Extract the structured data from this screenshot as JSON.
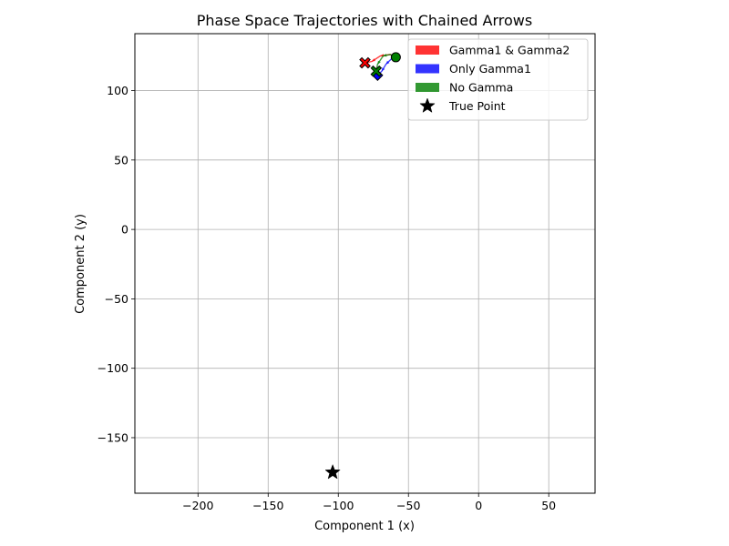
{
  "chart_data": {
    "type": "line",
    "title": "Phase Space Trajectories with Chained Arrows",
    "xlabel": "Component 1 (x)",
    "ylabel": "Component 2 (y)",
    "xlim": [
      -245,
      83
    ],
    "ylim": [
      -190,
      141
    ],
    "xticks": [
      -200,
      -150,
      -100,
      -50,
      0,
      50
    ],
    "yticks": [
      -150,
      -100,
      -50,
      0,
      50,
      100
    ],
    "xtick_labels": [
      "−200",
      "−150",
      "−100",
      "−50",
      "0",
      "50"
    ],
    "ytick_labels": [
      "−150",
      "−100",
      "−50",
      "0",
      "50",
      "100"
    ],
    "grid": true,
    "legend_position": "top-right",
    "start_point": {
      "x": -59,
      "y": 124
    },
    "series": [
      {
        "name": "Gamma1 & Gamma2",
        "color": "#ff0000",
        "path": [
          [
            -59,
            124
          ],
          [
            -63,
            126
          ],
          [
            -70,
            125
          ],
          [
            -76,
            121
          ],
          [
            -81,
            120
          ]
        ],
        "end_marker": "X"
      },
      {
        "name": "Only Gamma1",
        "color": "#0000ff",
        "path": [
          [
            -59,
            124
          ],
          [
            -62,
            123
          ],
          [
            -66,
            119
          ],
          [
            -69,
            114
          ],
          [
            -72,
            111
          ]
        ],
        "end_marker": "D"
      },
      {
        "name": "No Gamma",
        "color": "#008000",
        "path": [
          [
            -59,
            124
          ],
          [
            -63,
            126
          ],
          [
            -68,
            125
          ],
          [
            -72,
            119
          ],
          [
            -73,
            114
          ]
        ],
        "end_marker": "X"
      }
    ],
    "true_point": {
      "name": "True Point",
      "x": -104,
      "y": -175,
      "marker": "star",
      "color": "#000000"
    }
  }
}
